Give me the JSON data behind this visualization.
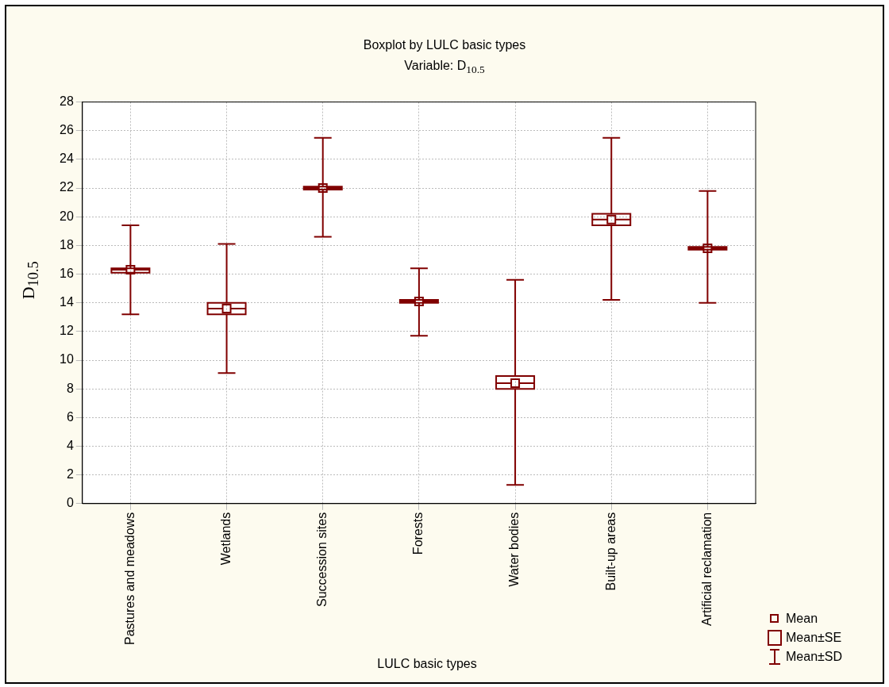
{
  "chart_data": {
    "type": "box",
    "title": "Boxplot by LULC basic types",
    "subtitle": "Variable: D$_{10.5}$",
    "xlabel": "LULC basic types",
    "ylabel": "D$_{10.5}$",
    "categories": [
      "Pastures and meadows",
      "Wetlands",
      "Succession sites",
      "Forests",
      "Water bodies",
      "Built-up areas",
      "Artificial reclamation"
    ],
    "series": [
      {
        "color": "#800000",
        "boxes": [
          {
            "low": 13.2,
            "q1": 16.1,
            "median": 16.3,
            "q3": 16.4,
            "high": 19.4,
            "mean": 16.3
          },
          {
            "low": 9.1,
            "q1": 13.2,
            "median": 13.6,
            "q3": 14.0,
            "high": 18.1,
            "mean": 13.6
          },
          {
            "low": 18.6,
            "q1": 21.9,
            "median": 22.0,
            "q3": 22.1,
            "high": 25.5,
            "mean": 22.0
          },
          {
            "low": 11.7,
            "q1": 14.0,
            "median": 14.1,
            "q3": 14.2,
            "high": 16.4,
            "mean": 14.1
          },
          {
            "low": 1.3,
            "q1": 8.0,
            "median": 8.4,
            "q3": 8.9,
            "high": 15.6,
            "mean": 8.4
          },
          {
            "low": 14.2,
            "q1": 19.4,
            "median": 19.8,
            "q3": 20.2,
            "high": 25.5,
            "mean": 19.8
          },
          {
            "low": 14.0,
            "q1": 17.7,
            "median": 17.8,
            "q3": 17.9,
            "high": 21.8,
            "mean": 17.8
          }
        ]
      }
    ],
    "ylim": [
      0,
      28
    ],
    "yticks": [
      0,
      2,
      4,
      6,
      8,
      10,
      12,
      14,
      16,
      18,
      20,
      22,
      24,
      26,
      28
    ],
    "grid": true,
    "annotations": [
      "Mean",
      "Mean±SE",
      "Mean±SD"
    ]
  }
}
